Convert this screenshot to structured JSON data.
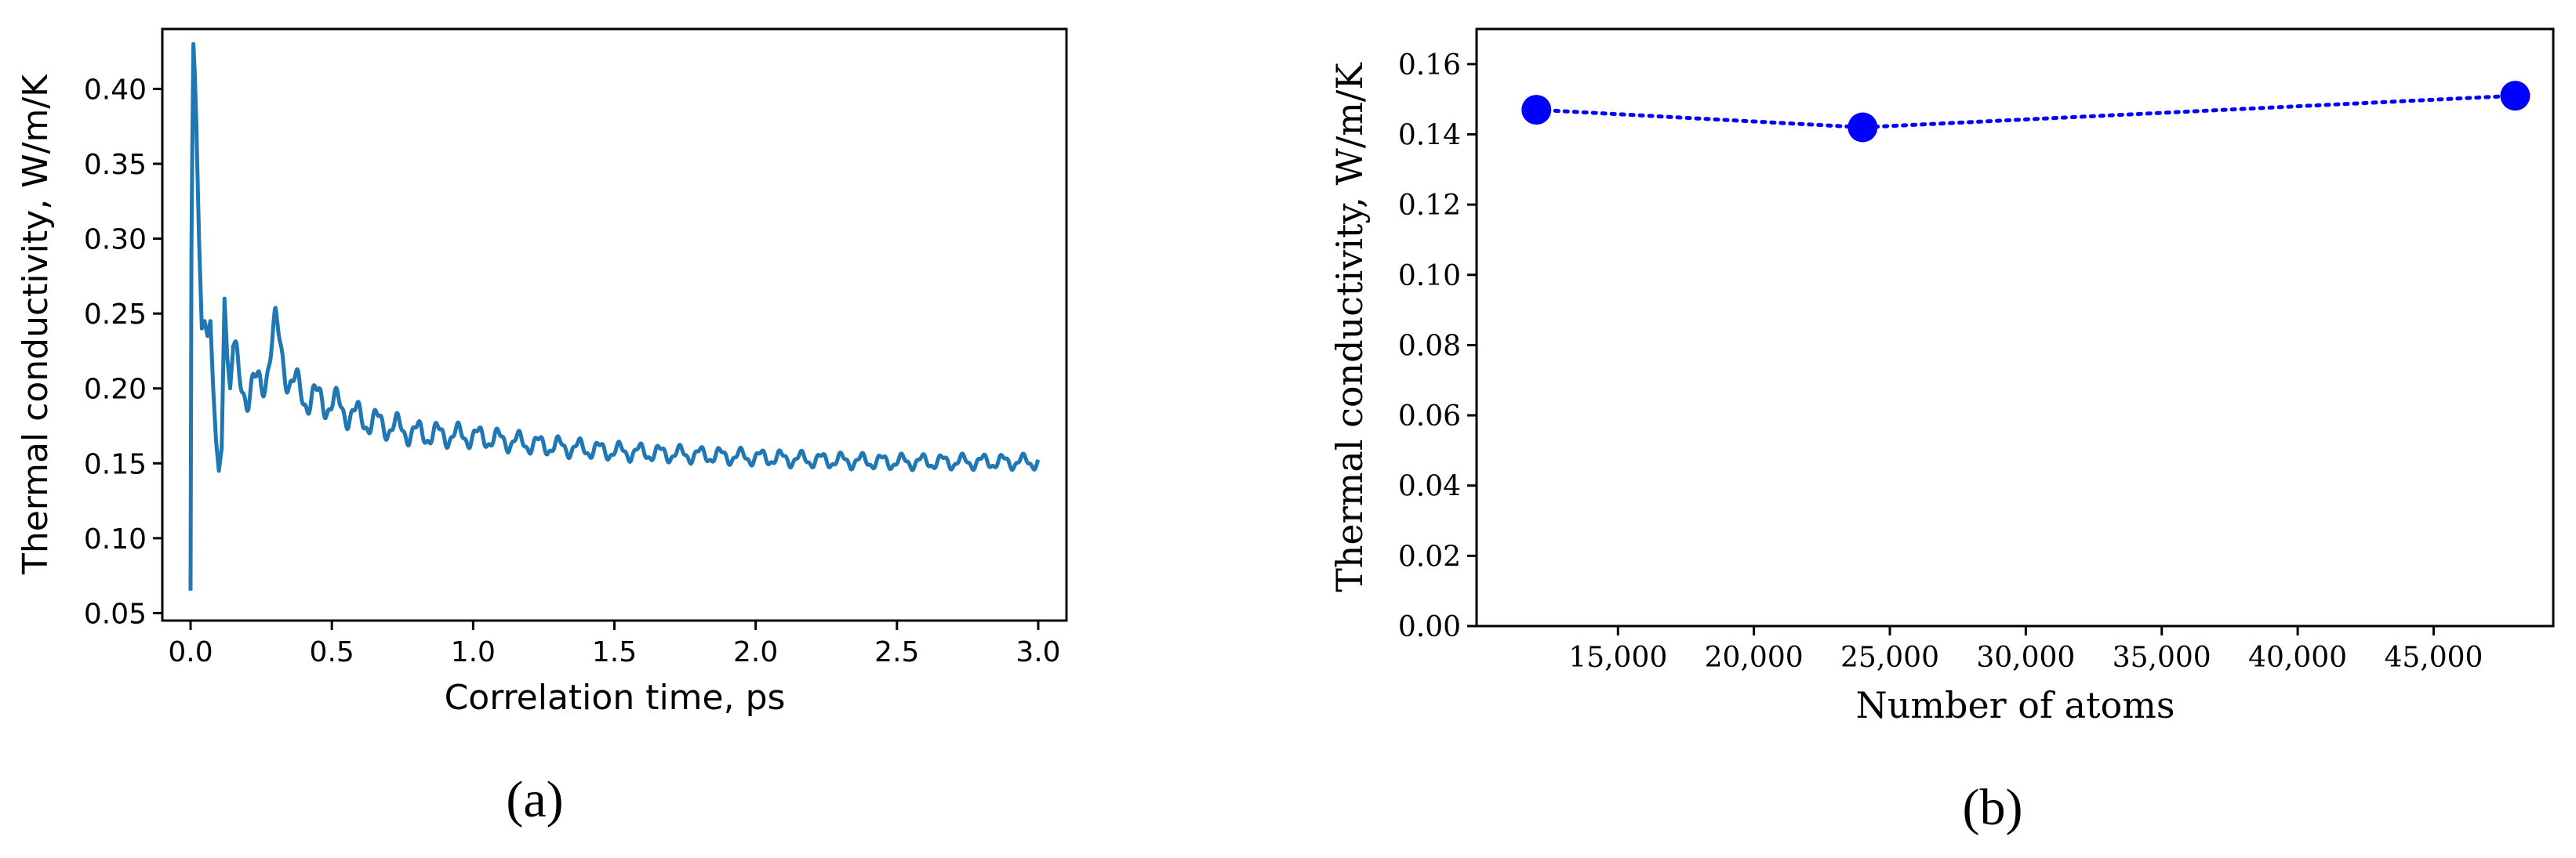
{
  "panels": [
    {
      "label": "(a)",
      "letter": "a"
    },
    {
      "label": "(b)",
      "letter": "b"
    }
  ],
  "colors": {
    "line_a": "#1f77b4",
    "line_b": "#0000ff"
  },
  "chart_data": [
    {
      "type": "line",
      "panel": "a",
      "xlabel": "Correlation time, ps",
      "ylabel": "Thermal conductivity, W/m/K",
      "xlim": [
        -0.1,
        3.1
      ],
      "ylim": [
        0.045,
        0.44
      ],
      "xticks": [
        0.0,
        0.5,
        1.0,
        1.5,
        2.0,
        2.5,
        3.0
      ],
      "xtick_labels": [
        "0.0",
        "0.5",
        "1.0",
        "1.5",
        "2.0",
        "2.5",
        "3.0"
      ],
      "yticks": [
        0.05,
        0.1,
        0.15,
        0.2,
        0.25,
        0.3,
        0.35,
        0.4
      ],
      "ytick_labels": [
        "0.05",
        "0.10",
        "0.15",
        "0.20",
        "0.25",
        "0.30",
        "0.35",
        "0.40"
      ],
      "grid": false,
      "series": [
        {
          "x": [
            0.0,
            0.003,
            0.006,
            0.01,
            0.015,
            0.02,
            0.03,
            0.04,
            0.05,
            0.06,
            0.07,
            0.08,
            0.09,
            0.1,
            0.11,
            0.12,
            0.13,
            0.14,
            0.15,
            0.17,
            0.2,
            0.25,
            0.3,
            0.35,
            0.4,
            0.5,
            0.6,
            0.8,
            1.0,
            1.25,
            1.5,
            1.75,
            2.0,
            2.25,
            2.5,
            2.75,
            3.0
          ],
          "y": [
            0.065,
            0.29,
            0.36,
            0.43,
            0.41,
            0.38,
            0.3,
            0.24,
            0.245,
            0.235,
            0.245,
            0.2,
            0.165,
            0.145,
            0.16,
            0.26,
            0.22,
            0.2,
            0.225,
            0.205,
            0.2,
            0.2,
            0.24,
            0.205,
            0.195,
            0.19,
            0.18,
            0.17,
            0.168,
            0.162,
            0.158,
            0.156,
            0.154,
            0.152,
            0.151,
            0.151,
            0.151
          ]
        }
      ]
    },
    {
      "type": "line",
      "panel": "b",
      "xlabel": "Number of atoms",
      "ylabel": "Thermal conductivity, W/m/K",
      "xlim": [
        9800,
        49400
      ],
      "ylim": [
        0.0,
        0.17
      ],
      "xticks": [
        15000,
        20000,
        25000,
        30000,
        35000,
        40000,
        45000
      ],
      "xtick_labels": [
        "15,000",
        "20,000",
        "25,000",
        "30,000",
        "35,000",
        "40,000",
        "45,000"
      ],
      "yticks": [
        0.0,
        0.02,
        0.04,
        0.06,
        0.08,
        0.1,
        0.12,
        0.14,
        0.16
      ],
      "ytick_labels": [
        "0.00",
        "0.02",
        "0.04",
        "0.06",
        "0.08",
        "0.10",
        "0.12",
        "0.14",
        "0.16"
      ],
      "grid": false,
      "series": [
        {
          "x": [
            12000,
            24000,
            48000
          ],
          "y": [
            0.147,
            0.142,
            0.151
          ]
        }
      ]
    }
  ]
}
